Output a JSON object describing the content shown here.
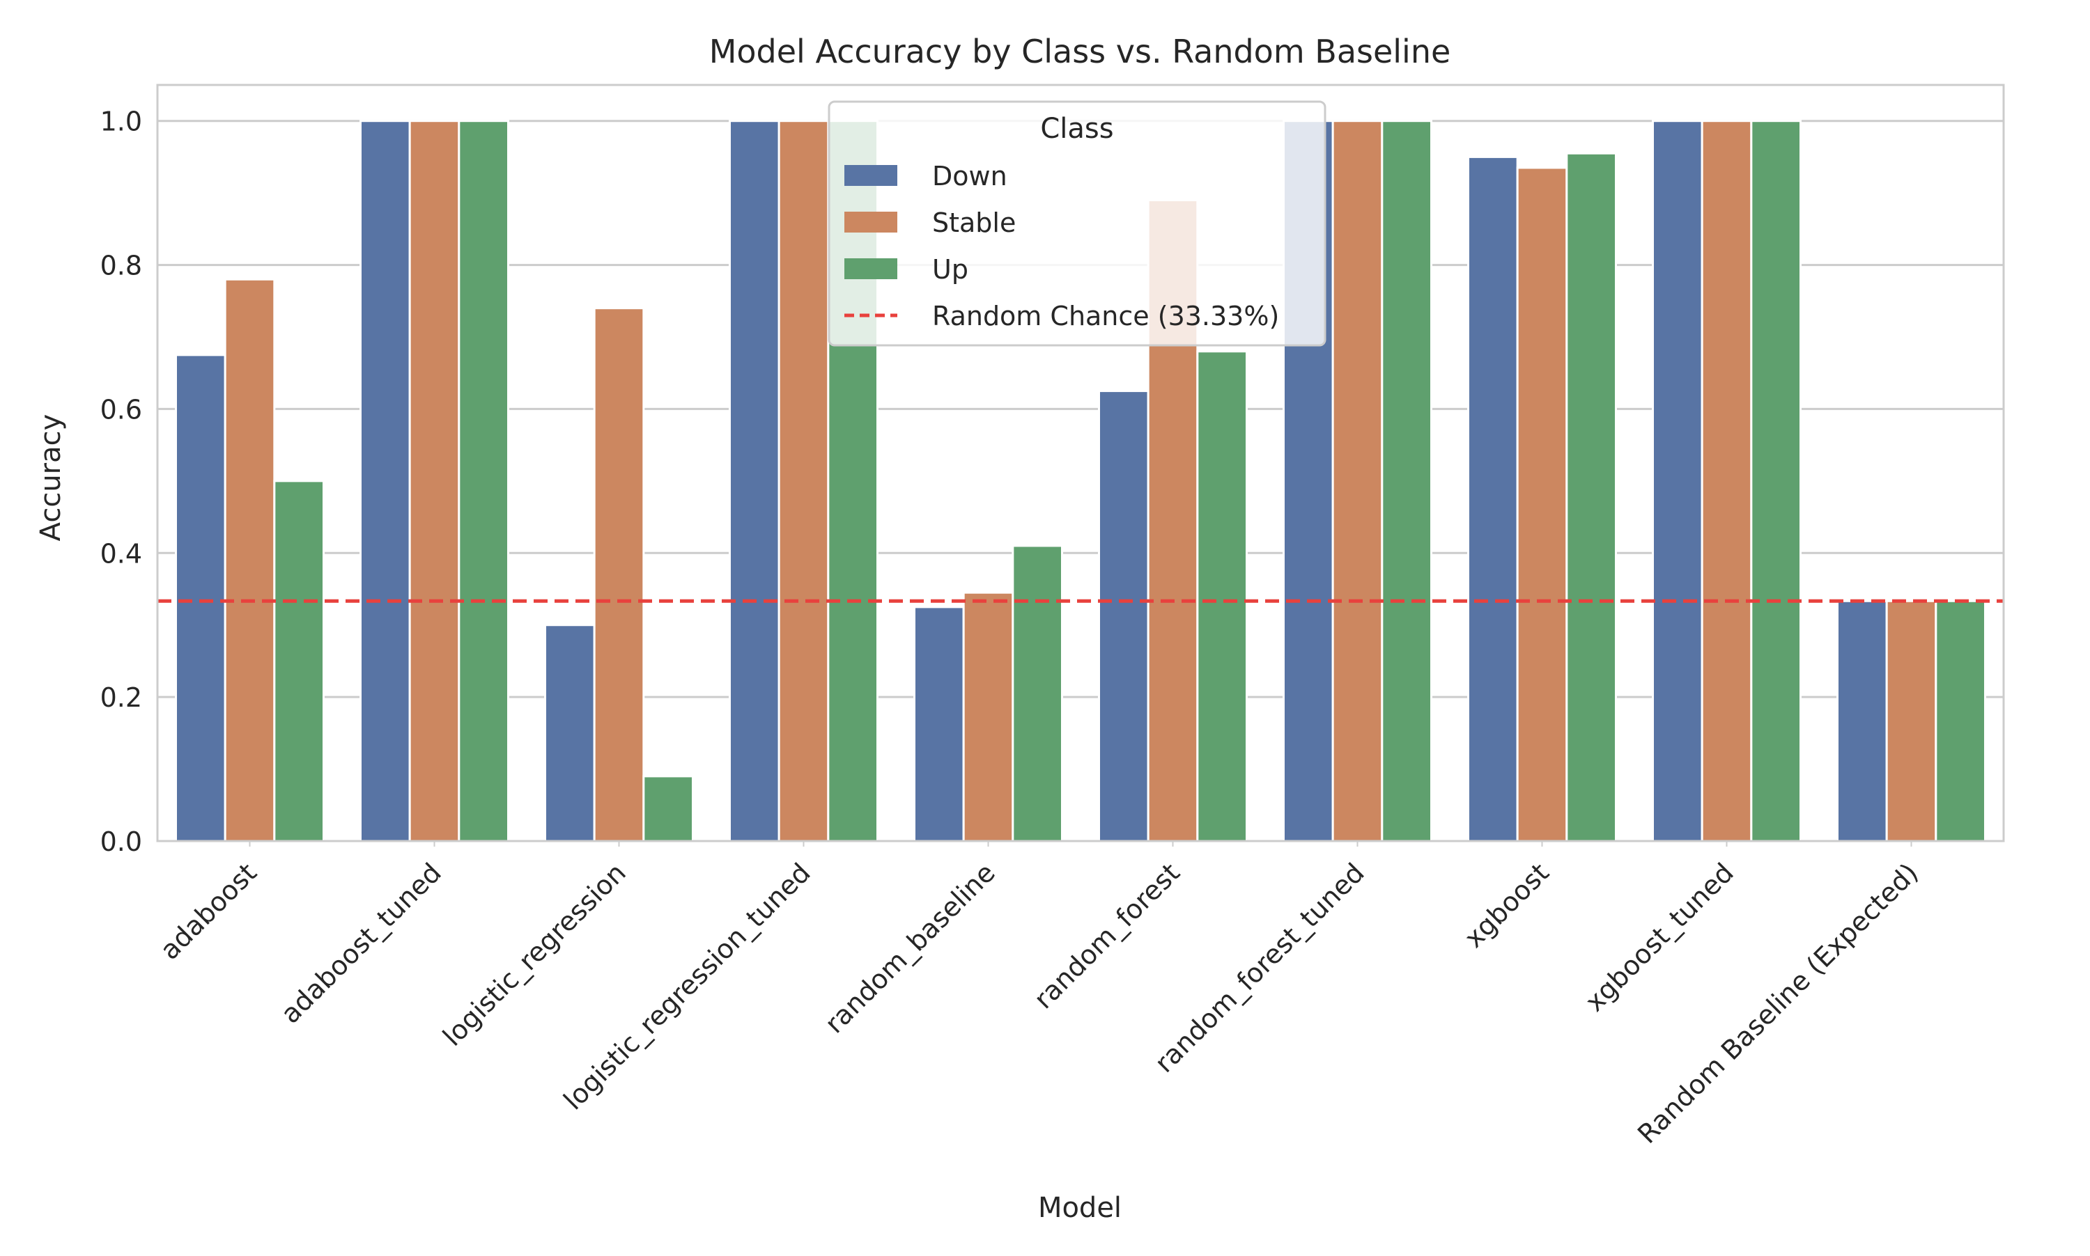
{
  "chart_data": {
    "type": "bar",
    "title": "Model Accuracy by Class vs. Random Baseline",
    "xlabel": "Model",
    "ylabel": "Accuracy",
    "ylim": [
      0,
      1.05
    ],
    "yticks": [
      "0.0",
      "0.2",
      "0.4",
      "0.6",
      "0.8",
      "1.0"
    ],
    "grid": "horizontal",
    "legend_title": "Class",
    "legend_position": "top-center",
    "categories": [
      "adaboost",
      "adaboost_tuned",
      "logistic_regression",
      "logistic_regression_tuned",
      "random_baseline",
      "random_forest",
      "random_forest_tuned",
      "xgboost",
      "xgboost_tuned",
      "Random Baseline (Expected)"
    ],
    "series": [
      {
        "name": "Down",
        "color": "#5874a4",
        "values": [
          0.675,
          1.0,
          0.3,
          1.0,
          0.325,
          0.625,
          1.0,
          0.95,
          1.0,
          0.3333
        ]
      },
      {
        "name": "Stable",
        "color": "#cc8760",
        "values": [
          0.78,
          1.0,
          0.74,
          1.0,
          0.345,
          0.89,
          1.0,
          0.935,
          1.0,
          0.3333
        ]
      },
      {
        "name": "Up",
        "color": "#5fa06e",
        "values": [
          0.5,
          1.0,
          0.09,
          1.0,
          0.41,
          0.68,
          1.0,
          0.955,
          1.0,
          0.3333
        ]
      }
    ],
    "reference_line": {
      "label": "Random Chance (33.33%)",
      "value": 0.3333,
      "color": "#e8413d",
      "style": "dashed"
    }
  }
}
